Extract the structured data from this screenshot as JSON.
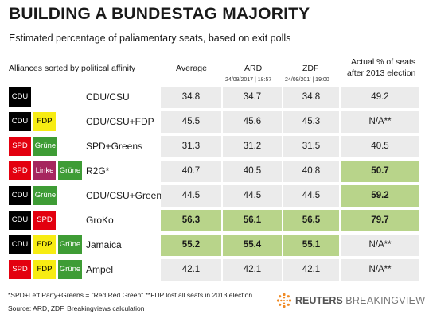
{
  "title": "BUILDING A BUNDESTAG MAJORITY",
  "subtitle": "Estimated percentage of paliamentary seats, based on exit polls",
  "header": {
    "alliances": "Alliances sorted by political affinity",
    "average": "Average",
    "ard": "ARD",
    "ard_time": "24/09/2017 | 18:57",
    "zdf": "ZDF",
    "zdf_time": "24/09/201' | 19:00",
    "actual_line1": "Actual % of seats",
    "actual_line2": "after 2013 election"
  },
  "party_colors": {
    "CDU": {
      "bg": "#000000",
      "fg": "#ffffff"
    },
    "FDP": {
      "bg": "#f7ec13",
      "fg": "#000000"
    },
    "SPD": {
      "bg": "#e3000f",
      "fg": "#ffffff"
    },
    "Grüne": {
      "bg": "#3e9c35",
      "fg": "#ffffff"
    },
    "Linke": {
      "bg": "#a6265e",
      "fg": "#ffffff"
    }
  },
  "highlight_color": "#b8d48a",
  "cell_color": "#ebebeb",
  "chart_data": {
    "type": "table",
    "columns": [
      "Average",
      "ARD",
      "ZDF",
      "Actual % of seats after 2013 election"
    ],
    "rows": [
      {
        "parties": [
          "CDU"
        ],
        "name": "CDU/CSU",
        "values": [
          "34.8",
          "34.7",
          "34.8",
          "49.2"
        ],
        "highlight": [
          false,
          false,
          false,
          false
        ]
      },
      {
        "parties": [
          "CDU",
          "FDP"
        ],
        "name": "CDU/CSU+FDP",
        "values": [
          "45.5",
          "45.6",
          "45.3",
          "N/A**"
        ],
        "highlight": [
          false,
          false,
          false,
          false
        ]
      },
      {
        "parties": [
          "SPD",
          "Grüne"
        ],
        "name": "SPD+Greens",
        "values": [
          "31.3",
          "31.2",
          "31.5",
          "40.5"
        ],
        "highlight": [
          false,
          false,
          false,
          false
        ]
      },
      {
        "parties": [
          "SPD",
          "Linke",
          "Grüne"
        ],
        "name": "R2G*",
        "values": [
          "40.7",
          "40.5",
          "40.8",
          "50.7"
        ],
        "highlight": [
          false,
          false,
          false,
          true
        ]
      },
      {
        "parties": [
          "CDU",
          "Grüne"
        ],
        "name": "CDU/CSU+Greens",
        "values": [
          "44.5",
          "44.5",
          "44.5",
          "59.2"
        ],
        "highlight": [
          false,
          false,
          false,
          true
        ]
      },
      {
        "parties": [
          "CDU",
          "SPD"
        ],
        "name": "GroKo",
        "values": [
          "56.3",
          "56.1",
          "56.5",
          "79.7"
        ],
        "highlight": [
          true,
          true,
          true,
          true
        ]
      },
      {
        "parties": [
          "CDU",
          "FDP",
          "Grüne"
        ],
        "name": "Jamaica",
        "values": [
          "55.2",
          "55.4",
          "55.1",
          "N/A**"
        ],
        "highlight": [
          true,
          true,
          true,
          false
        ]
      },
      {
        "parties": [
          "SPD",
          "FDP",
          "Grüne"
        ],
        "name": "Ampel",
        "values": [
          "42.1",
          "42.1",
          "42.1",
          "N/A**"
        ],
        "highlight": [
          false,
          false,
          false,
          false
        ]
      }
    ]
  },
  "footnote": "*SPD+Left Party+Greens = \"Red Red Green\" **FDP lost all seats in 2013 election",
  "source": "Source: ARD, ZDF, Breakingviews calculation",
  "logo": {
    "reuters": "REUTERS",
    "breakingviews": "BREAKINGVIEWS"
  }
}
